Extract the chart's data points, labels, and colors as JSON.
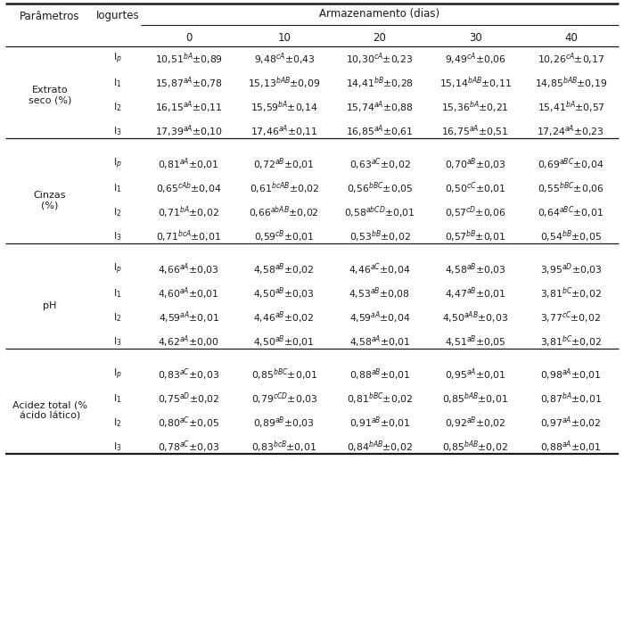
{
  "col_header_top": "Armazenamento (dias)",
  "col_header_days": [
    "0",
    "10",
    "20",
    "30",
    "40"
  ],
  "header_left": [
    "Parâmetros",
    "Iogurtes"
  ],
  "sections": [
    {
      "param": "Extrato\nseco (%)",
      "rows": [
        {
          "yogurt": "I$_p$",
          "values": [
            "10,51$^{bA}$±0,89",
            "9,48$^{cA}$±0,43",
            "10,30$^{cA}$±0,23",
            "9,49$^{cA}$±0,06",
            "10,26$^{cA}$±0,17"
          ]
        },
        {
          "yogurt": "I$_1$",
          "values": [
            "15,87$^{aA}$±0,78",
            "15,13$^{bAB}$±0,09",
            "14,41$^{bB}$±0,28",
            "15,14$^{bAB}$±0,11",
            "14,85$^{bAB}$±0,19"
          ]
        },
        {
          "yogurt": "I$_2$",
          "values": [
            "16,15$^{aA}$±0,11",
            "15,59$^{bA}$±0,14",
            "15,74$^{aA}$±0,88",
            "15,36$^{bA}$±0,21",
            "15,41$^{bA}$±0,57"
          ]
        },
        {
          "yogurt": "I$_3$",
          "values": [
            "17,39$^{aA}$±0,10",
            "17,46$^{aA}$±0,11",
            "16,85$^{aA}$±0,61",
            "16,75$^{aA}$±0,51",
            "17,24$^{aA}$±0,23"
          ]
        }
      ]
    },
    {
      "param": "Cinzas\n(%)",
      "rows": [
        {
          "yogurt": "I$_p$",
          "values": [
            "0,81$^{aA}$±0,01",
            "0,72$^{aB}$±0,01",
            "0,63$^{aC}$±0,02",
            "0,70$^{aB}$±0,03",
            "0,69$^{aBC}$±0,04"
          ]
        },
        {
          "yogurt": "I$_1$",
          "values": [
            "0,65$^{cAb}$±0,04",
            "0,61$^{bcAB}$±0,02",
            "0,56$^{bBC}$±0,05",
            "0,50$^{cC}$±0,01",
            "0,55$^{bBC}$±0,06"
          ]
        },
        {
          "yogurt": "I$_2$",
          "values": [
            "0,71$^{bA}$±0,02",
            "0,66$^{abAB}$±0,02",
            "0,58$^{abCD}$±0,01",
            "0,57$^{cD}$±0,06",
            "0,64$^{aBC}$±0,01"
          ]
        },
        {
          "yogurt": "I$_3$",
          "values": [
            "0,71$^{bcA}$±0,01",
            "0,59$^{cB}$±0,01",
            "0,53$^{bB}$±0,02",
            "0,57$^{bB}$±0,01",
            "0,54$^{bB}$±0,05"
          ]
        }
      ]
    },
    {
      "param": "pH",
      "rows": [
        {
          "yogurt": "I$_p$",
          "values": [
            "4,66$^{aA}$±0,03",
            "4,58$^{aB}$±0,02",
            "4,46$^{aC}$±0,04",
            "4,58$^{aB}$±0,03",
            "3,95$^{aD}$±0,03"
          ]
        },
        {
          "yogurt": "I$_1$",
          "values": [
            "4,60$^{aA}$±0,01",
            "4,50$^{aB}$±0,03",
            "4,53$^{aB}$±0,08",
            "4,47$^{aB}$±0,01",
            "3,81$^{bC}$±0,02"
          ]
        },
        {
          "yogurt": "I$_2$",
          "values": [
            "4,59$^{aA}$±0,01",
            "4,46$^{aB}$±0,02",
            "4,59$^{aA}$±0,04",
            "4,50$^{aAB}$±0,03",
            "3,77$^{cC}$±0,02"
          ]
        },
        {
          "yogurt": "I$_3$",
          "values": [
            "4,62$^{aA}$±0,00",
            "4,50$^{aB}$±0,01",
            "4,58$^{aA}$±0,01",
            "4,51$^{aB}$±0,05",
            "3,81$^{bC}$±0,02"
          ]
        }
      ]
    },
    {
      "param": "Acidez total (%\nácido lático)",
      "rows": [
        {
          "yogurt": "I$_p$",
          "values": [
            "0,83$^{aC}$±0,03",
            "0,85$^{bBC}$±0,01",
            "0,88$^{aB}$±0,01",
            "0,95$^{aA}$±0,01",
            "0,98$^{aA}$±0,01"
          ]
        },
        {
          "yogurt": "I$_1$",
          "values": [
            "0,75$^{aD}$±0,02",
            "0,79$^{cCD}$±0,03",
            "0,81$^{bBC}$±0,02",
            "0,85$^{bAB}$±0,01",
            "0,87$^{bA}$±0,01"
          ]
        },
        {
          "yogurt": "I$_2$",
          "values": [
            "0,80$^{aC}$±0,05",
            "0,89$^{aB}$±0,03",
            "0,91$^{aB}$±0,01",
            "0,92$^{aB}$±0,02",
            "0,97$^{aA}$±0,02"
          ]
        },
        {
          "yogurt": "I$_3$",
          "values": [
            "0,78$^{aC}$±0,03",
            "0,83$^{bcB}$±0,01",
            "0,84$^{bAB}$±0,02",
            "0,85$^{bAB}$±0,02",
            "0,88$^{aA}$±0,01"
          ]
        }
      ]
    }
  ],
  "bg": "#ffffff",
  "fg": "#1a1a1a",
  "fs_data": 7.8,
  "fs_header": 8.5,
  "fs_param": 8.0
}
